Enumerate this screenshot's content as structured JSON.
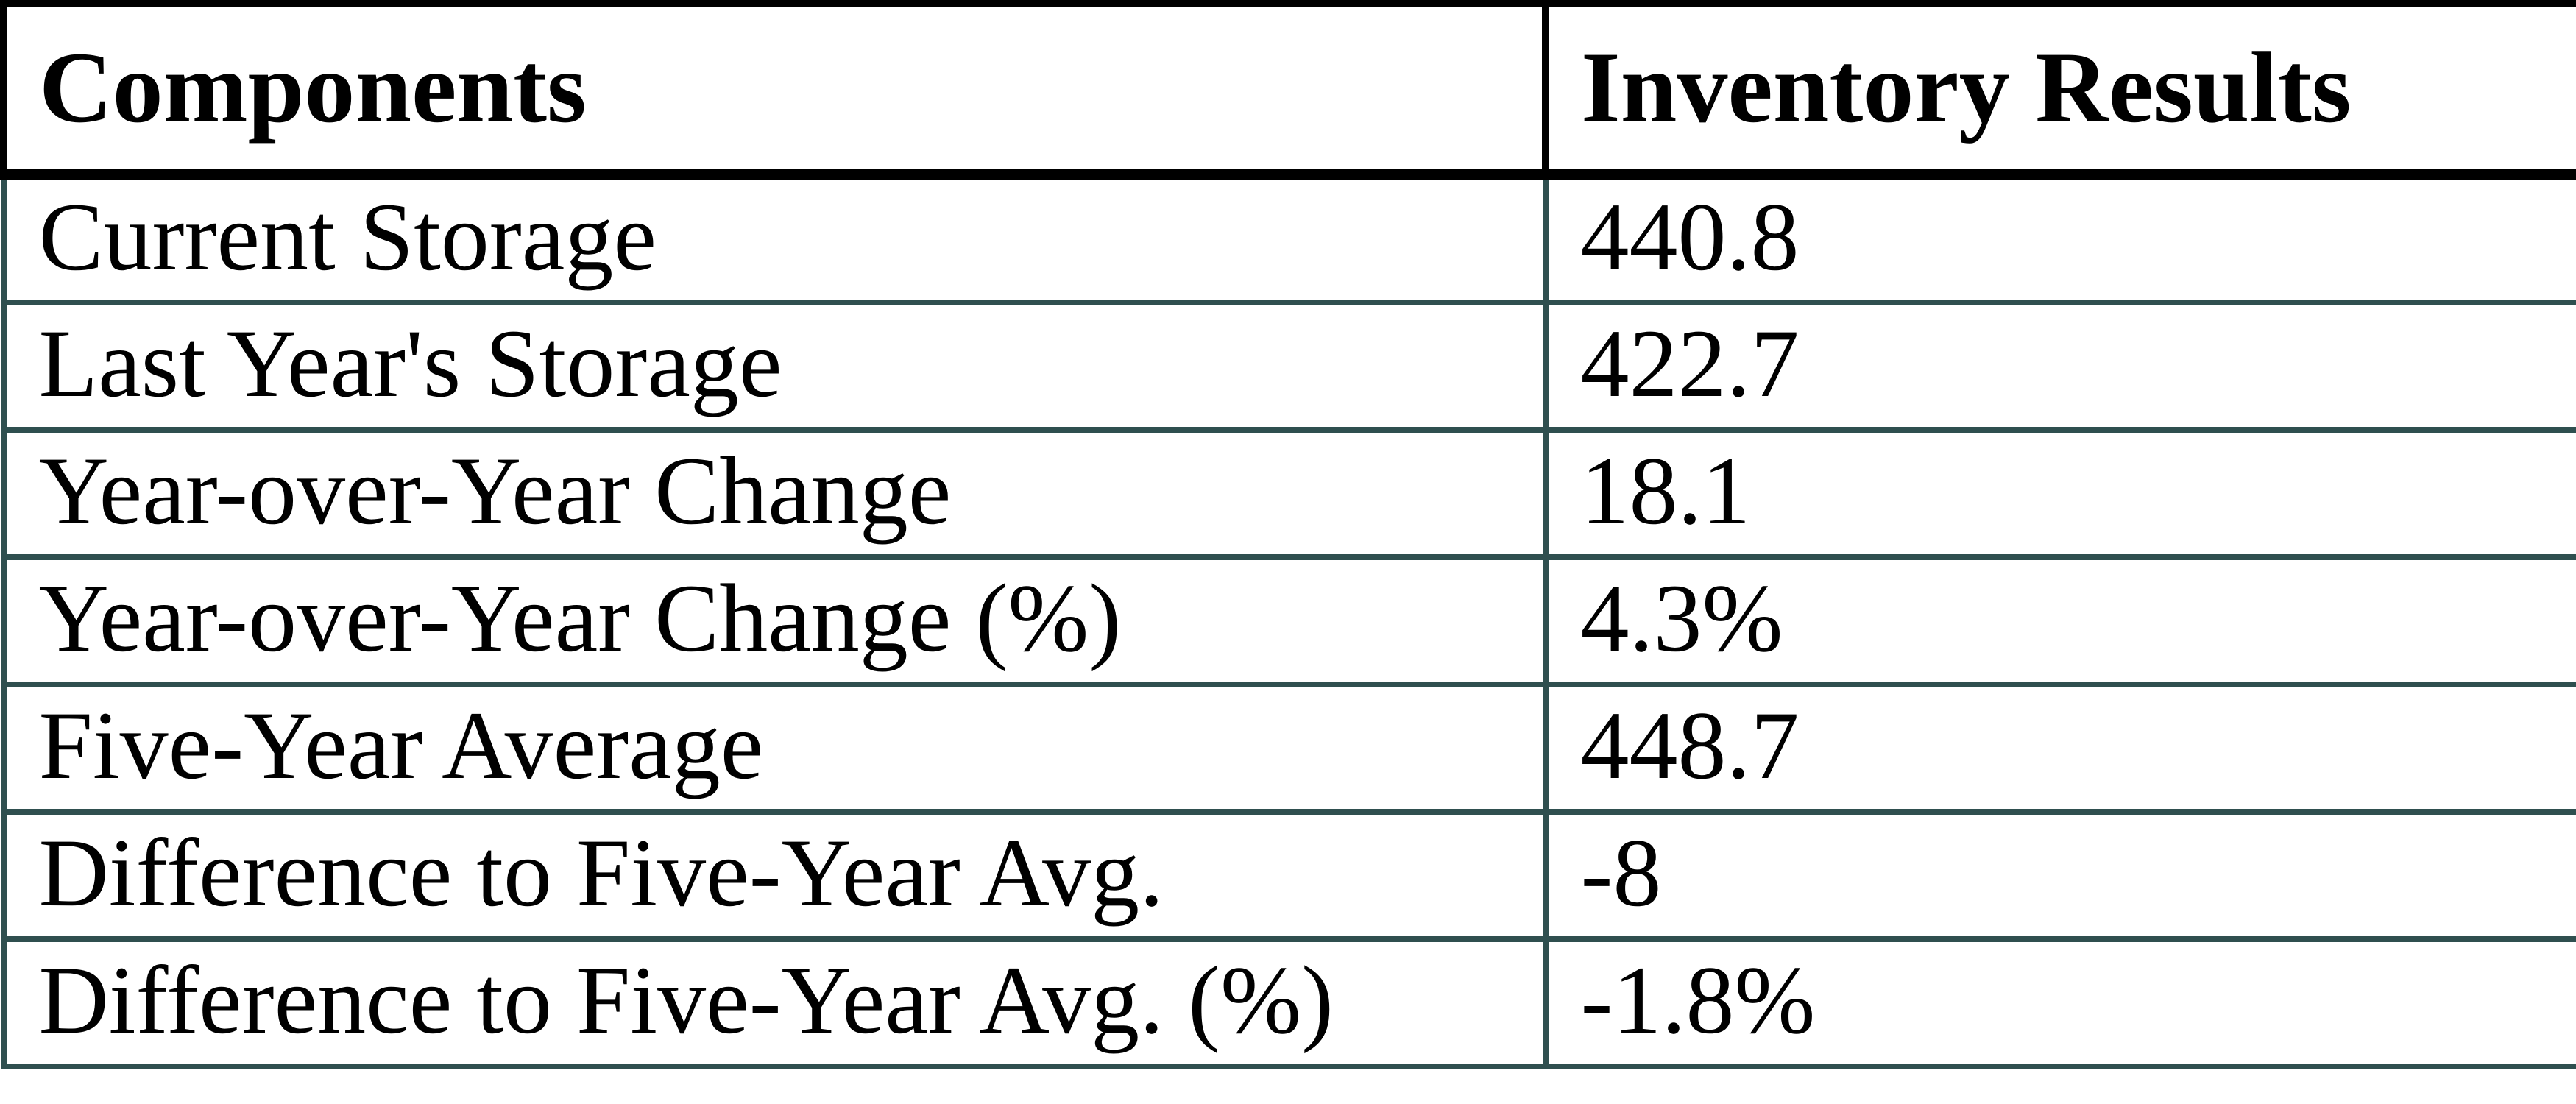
{
  "table": {
    "columns": [
      {
        "label": "Components"
      },
      {
        "label": "Inventory Results"
      }
    ],
    "rows": [
      {
        "label": "Current Storage",
        "value": "440.8"
      },
      {
        "label": "Last Year's Storage",
        "value": "422.7"
      },
      {
        "label": "Year-over-Year Change",
        "value": "18.1"
      },
      {
        "label": "Year-over-Year Change (%)",
        "value": "4.3%"
      },
      {
        "label": "Five-Year Average",
        "value": "448.7"
      },
      {
        "label": "Difference to Five-Year Avg.",
        "value": "-8"
      },
      {
        "label": "Difference to Five-Year Avg. (%)",
        "value": "-1.8%"
      }
    ]
  },
  "chart_data": {
    "type": "table",
    "title": "",
    "columns": [
      "Components",
      "Inventory Results"
    ],
    "rows": [
      [
        "Current Storage",
        440.8
      ],
      [
        "Last Year's Storage",
        422.7
      ],
      [
        "Year-over-Year Change",
        18.1
      ],
      [
        "Year-over-Year Change (%)",
        "4.3%"
      ],
      [
        "Five-Year Average",
        448.7
      ],
      [
        "Difference to Five-Year Avg.",
        -8
      ],
      [
        "Difference to Five-Year Avg. (%)",
        "-1.8%"
      ]
    ]
  },
  "colors": {
    "background": "#FFFFFF",
    "text": "#000000",
    "header_border": "#000000",
    "body_border": "#2F4F4F"
  }
}
